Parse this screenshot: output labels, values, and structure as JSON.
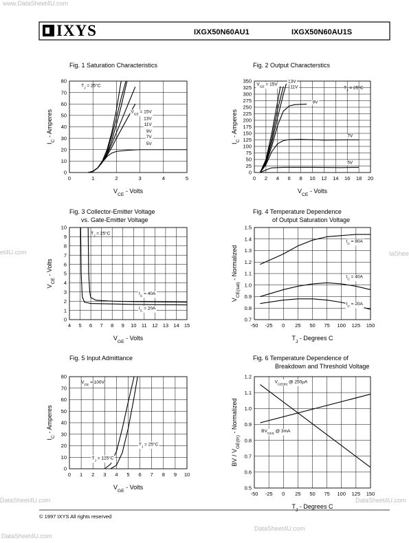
{
  "header": {
    "logo": "IXYS",
    "part_numbers": [
      "IXGX50N60AU1",
      "IXGX50N60AU1S"
    ]
  },
  "watermarks": [
    "www.DataSheet4U.com",
    "et4U.com",
    "taSheet4U.com",
    "DataSheet4U.com",
    "DataSheet4U.com",
    "DataSheet4U.com",
    "DataSheet4U.com"
  ],
  "footer": "© 1997 IXYS All rights reserved",
  "chart_data": [
    {
      "type": "line",
      "title": [
        "Fig. 1  Saturation Characteristics"
      ],
      "xlabel": [
        "V",
        "CE",
        " - Volts"
      ],
      "ylabel": [
        "I",
        "C",
        " - Amperes"
      ],
      "xlim": [
        0,
        5
      ],
      "xticks": [
        0,
        1,
        2,
        3,
        4,
        5
      ],
      "ylim": [
        0,
        80
      ],
      "yticks": [
        0,
        10,
        20,
        30,
        40,
        50,
        60,
        70,
        80
      ],
      "grid": true,
      "color": "#000000",
      "annotations": [
        [
          "T",
          "J",
          " = 25°C"
        ]
      ],
      "series": [
        {
          "name": [
            "V",
            "GE",
            " = 15V"
          ],
          "x": [
            0.8,
            1.0,
            1.2,
            1.4,
            1.6,
            1.8,
            2.0,
            2.2
          ],
          "values": [
            0,
            1,
            4,
            10,
            20,
            35,
            55,
            80
          ]
        },
        {
          "name": [
            "13V"
          ],
          "x": [
            0.8,
            1.0,
            1.2,
            1.4,
            1.6,
            1.8,
            2.0,
            2.2,
            2.4
          ],
          "values": [
            0,
            1,
            4,
            10,
            19,
            32,
            48,
            65,
            80
          ]
        },
        {
          "name": [
            "11V"
          ],
          "x": [
            0.8,
            1.0,
            1.2,
            1.4,
            1.6,
            1.8,
            2.0,
            2.2,
            2.45
          ],
          "values": [
            0,
            1,
            4,
            9,
            17,
            28,
            42,
            58,
            80
          ]
        },
        {
          "name": [
            "9V"
          ],
          "x": [
            0.8,
            1.0,
            1.2,
            1.4,
            1.6,
            1.8,
            2.0,
            2.4,
            2.8
          ],
          "values": [
            0,
            1,
            4,
            9,
            16,
            25,
            35,
            55,
            75
          ]
        },
        {
          "name": [
            "7V"
          ],
          "x": [
            0.8,
            1.0,
            1.2,
            1.4,
            1.6,
            1.8,
            2.0,
            2.4,
            2.8
          ],
          "values": [
            0,
            1,
            4,
            9,
            15,
            22,
            30,
            45,
            60
          ]
        },
        {
          "name": [
            "5V"
          ],
          "x": [
            0.8,
            1.0,
            1.2,
            1.4,
            1.6,
            1.8,
            2.0,
            2.5,
            3,
            4,
            5
          ],
          "values": [
            0,
            1,
            4,
            9,
            14,
            17,
            18.5,
            19.5,
            20,
            20,
            20
          ]
        }
      ]
    },
    {
      "type": "line",
      "title": [
        "Fig. 2   Output  Characterstics"
      ],
      "xlabel": [
        "V",
        "CE",
        " - Volts"
      ],
      "ylabel": [
        "I",
        "C",
        " - Amperes"
      ],
      "xlim": [
        0,
        20
      ],
      "xticks": [
        0,
        2,
        4,
        6,
        8,
        10,
        12,
        14,
        16,
        18,
        20
      ],
      "ylim": [
        0,
        350
      ],
      "yticks": [
        0,
        25,
        50,
        75,
        100,
        125,
        150,
        175,
        200,
        225,
        250,
        275,
        300,
        325,
        350
      ],
      "grid": true,
      "color": "#000000",
      "annotations": [
        [
          "T",
          "J",
          " = 25°C"
        ]
      ],
      "series": [
        {
          "name": [
            "V",
            "GE",
            " = 15V"
          ],
          "x": [
            1,
            2,
            3,
            4,
            4.5
          ],
          "values": [
            0,
            50,
            150,
            270,
            330
          ]
        },
        {
          "name": [
            "13V"
          ],
          "x": [
            1,
            2,
            3,
            4,
            5
          ],
          "values": [
            0,
            45,
            130,
            240,
            330
          ]
        },
        {
          "name": [
            "11V"
          ],
          "x": [
            1,
            2,
            3,
            4,
            5,
            5.5
          ],
          "values": [
            0,
            40,
            115,
            210,
            300,
            340
          ]
        },
        {
          "name": [
            "9V"
          ],
          "x": [
            1,
            2,
            3,
            4,
            5,
            6,
            7,
            9
          ],
          "values": [
            0,
            35,
            100,
            180,
            235,
            255,
            260,
            262
          ]
        },
        {
          "name": [
            "7V"
          ],
          "x": [
            1,
            2,
            3,
            4,
            5,
            6,
            8,
            12,
            16,
            18
          ],
          "values": [
            0,
            30,
            80,
            110,
            122,
            126,
            127,
            124,
            125,
            125
          ]
        },
        {
          "name": [
            "5V"
          ],
          "x": [
            1,
            2,
            3,
            5,
            10,
            15,
            18
          ],
          "values": [
            0,
            10,
            18,
            20,
            20,
            19,
            20
          ]
        }
      ]
    },
    {
      "type": "line",
      "title": [
        "Fig. 3  Collector-Emitter Voltage",
        "vs. Gate-Emitter Voltage"
      ],
      "xlabel": [
        "V",
        "GE",
        " - Volts"
      ],
      "ylabel": [
        "V",
        "CE",
        " - Volts"
      ],
      "xlim": [
        4,
        15
      ],
      "xticks": [
        4,
        5,
        6,
        7,
        8,
        9,
        10,
        11,
        12,
        13,
        14,
        15
      ],
      "ylim": [
        0,
        10
      ],
      "yticks": [
        0,
        1,
        2,
        3,
        4,
        5,
        6,
        7,
        8,
        9,
        10
      ],
      "grid": true,
      "color": "#000000",
      "annotations": [
        [
          "T",
          "J",
          " = 25°C"
        ]
      ],
      "series": [
        {
          "name": [
            "I",
            "C",
            " = 40A"
          ],
          "x": [
            5.75,
            5.8,
            5.9,
            6,
            6.5,
            8,
            10,
            15
          ],
          "values": [
            10,
            5,
            3,
            2.4,
            2.1,
            2.0,
            1.95,
            1.9
          ]
        },
        {
          "name": [
            "I",
            "C",
            " = 20A"
          ],
          "x": [
            5.05,
            5.1,
            5.2,
            5.4,
            6,
            8,
            10,
            15
          ],
          "values": [
            10,
            5,
            2.5,
            1.9,
            1.75,
            1.7,
            1.65,
            1.6
          ]
        }
      ]
    },
    {
      "type": "line",
      "title": [
        "Fig. 4  Temperature Dependence",
        "of Output Saturation Voltage"
      ],
      "xlabel": [
        "T",
        "J",
        " - Degrees C"
      ],
      "ylabel": [
        "V",
        "CE(sat)",
        " - Normalized"
      ],
      "xlim": [
        -50,
        150
      ],
      "xticks": [
        -50,
        -25,
        0,
        25,
        50,
        75,
        100,
        125,
        150
      ],
      "ylim": [
        0.7,
        1.5
      ],
      "yticks": [
        0.7,
        0.8,
        0.9,
        {
          "value": 1,
          "label": "1.0"
        },
        1.1,
        1.2,
        1.3,
        1.4,
        1.5
      ],
      "grid": true,
      "color": "#000000",
      "annotations": [],
      "series": [
        {
          "name": [
            "I",
            "C",
            " = 80A"
          ],
          "x": [
            -40,
            0,
            25,
            50,
            75,
            100,
            125,
            150
          ],
          "values": [
            1.18,
            1.27,
            1.34,
            1.39,
            1.42,
            1.43,
            1.44,
            1.44
          ]
        },
        {
          "name": [
            "I",
            "C",
            " = 40A"
          ],
          "x": [
            -40,
            0,
            25,
            50,
            75,
            100,
            125,
            150
          ],
          "values": [
            0.9,
            0.96,
            0.99,
            1.01,
            1.02,
            1.01,
            0.99,
            0.96
          ]
        },
        {
          "name": [
            "I",
            "C",
            " = 20A"
          ],
          "x": [
            -40,
            0,
            25,
            50,
            75,
            100,
            125,
            150
          ],
          "values": [
            0.84,
            0.87,
            0.88,
            0.88,
            0.87,
            0.85,
            0.82,
            0.79
          ]
        }
      ]
    },
    {
      "type": "line",
      "title": [
        "Fig. 5  Input Admittance"
      ],
      "xlabel": [
        "V",
        "GE",
        " - Volts"
      ],
      "ylabel": [
        "I",
        "C",
        " - Amperes"
      ],
      "xlim": [
        0,
        10
      ],
      "xticks": [
        0,
        1,
        2,
        3,
        4,
        5,
        6,
        7,
        8,
        9,
        10
      ],
      "ylim": [
        0,
        80
      ],
      "yticks": [
        0,
        10,
        20,
        30,
        40,
        50,
        60,
        70,
        80
      ],
      "grid": true,
      "color": "#000000",
      "annotations": [
        [
          "V",
          "CE",
          " = 100V"
        ]
      ],
      "series": [
        {
          "name": [
            "T",
            "J",
            " = 125°C"
          ],
          "x": [
            3,
            3.5,
            4,
            4.5,
            5,
            5.5
          ],
          "values": [
            0,
            4,
            15,
            35,
            58,
            80
          ]
        },
        {
          "name": [
            "T",
            "J",
            " = 25°C"
          ],
          "x": [
            3.5,
            4,
            4.5,
            5,
            5.5,
            5.8
          ],
          "values": [
            0,
            3,
            14,
            35,
            62,
            80
          ]
        }
      ]
    },
    {
      "type": "line",
      "title": [
        "Fig. 6  Temperature Dependence of",
        "Breakdown and Threshold Voltage"
      ],
      "xlabel": [
        "T",
        "J",
        " - Degrees C"
      ],
      "ylabel": [
        "BV / V",
        "GE(th)",
        " - Normalized"
      ],
      "xlim": [
        -50,
        150
      ],
      "xticks": [
        -50,
        -25,
        0,
        25,
        50,
        75,
        100,
        125,
        150
      ],
      "ylim": [
        0.5,
        1.2
      ],
      "yticks": [
        0.5,
        0.6,
        0.7,
        0.8,
        0.9,
        {
          "value": 1,
          "label": "1.0"
        },
        1.1,
        1.2
      ],
      "grid": true,
      "color": "#000000",
      "annotations": [],
      "series": [
        {
          "name": [
            "V",
            "GE(th)",
            " @ 250µA"
          ],
          "x": [
            -40,
            150
          ],
          "values": [
            1.15,
            0.63
          ]
        },
        {
          "name": [
            "BV",
            "CES",
            " @ 3mA"
          ],
          "x": [
            -40,
            150
          ],
          "values": [
            0.91,
            1.09
          ]
        }
      ]
    }
  ]
}
